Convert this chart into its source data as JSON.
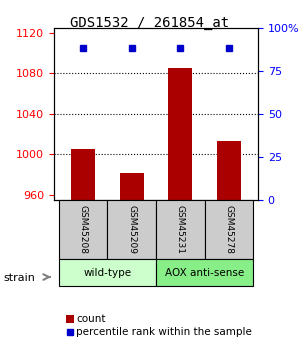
{
  "title": "GDS1532 / 261854_at",
  "samples": [
    "GSM45208",
    "GSM45209",
    "GSM45231",
    "GSM45278"
  ],
  "count_values": [
    1005,
    982,
    1085,
    1013
  ],
  "percentile_values": [
    88,
    88,
    88,
    88
  ],
  "ylim_left": [
    955,
    1125
  ],
  "ylim_right": [
    0,
    100
  ],
  "yticks_left": [
    960,
    1000,
    1040,
    1080,
    1120
  ],
  "yticks_right": [
    0,
    25,
    50,
    75,
    100
  ],
  "ytick_labels_right": [
    "0",
    "25",
    "50",
    "75",
    "100%"
  ],
  "bar_color": "#aa0000",
  "dot_color": "#0000cc",
  "bar_width": 0.5,
  "groups": [
    {
      "label": "wild-type",
      "samples": [
        0,
        1
      ],
      "color": "#ccffcc"
    },
    {
      "label": "AOX anti-sense",
      "samples": [
        2,
        3
      ],
      "color": "#88ee88"
    }
  ],
  "strain_label": "strain",
  "legend_count_label": "count",
  "legend_pct_label": "percentile rank within the sample",
  "background_color": "#ffffff",
  "plot_bg_color": "#ffffff",
  "grid_color": "#000000",
  "sample_box_color": "#cccccc"
}
